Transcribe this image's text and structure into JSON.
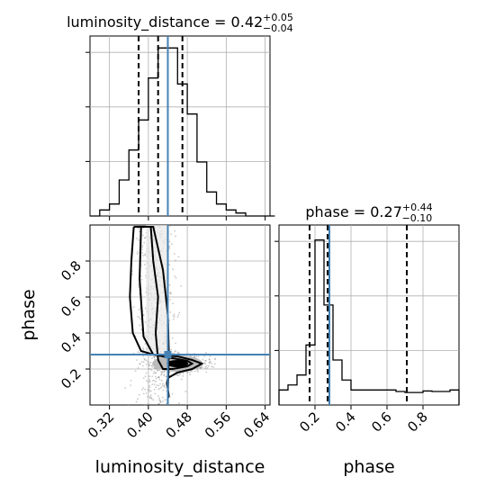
{
  "chart_data": [
    {
      "type": "histogram",
      "panel": "luminosity_distance-1d",
      "title": {
        "param": "luminosity_distance",
        "median": "0.42",
        "plus": "+0.05",
        "minus": "−0.04"
      },
      "bin_edges": [
        0.28,
        0.3,
        0.32,
        0.34,
        0.36,
        0.38,
        0.4,
        0.42,
        0.44,
        0.46,
        0.48,
        0.5,
        0.52,
        0.54,
        0.56,
        0.58,
        0.6,
        0.62,
        0.64,
        0.66
      ],
      "counts": [
        0,
        1,
        2,
        6,
        11,
        16,
        23,
        28,
        28,
        22,
        17,
        9,
        4,
        2,
        1,
        0.5,
        0,
        0,
        0
      ],
      "ylim": [
        0,
        30
      ],
      "quantiles": [
        0.38,
        0.42,
        0.47
      ],
      "truth": 0.44,
      "xlim": [
        0.28,
        0.65
      ],
      "xticks": [
        0.32,
        0.4,
        0.48,
        0.56,
        0.64
      ],
      "grid": true
    },
    {
      "type": "histogram",
      "panel": "phase-1d",
      "title": {
        "param": "phase",
        "median": "0.27",
        "plus": "+0.44",
        "minus": "−0.10"
      },
      "bin_edges": [
        0.0,
        0.05,
        0.1,
        0.15,
        0.2,
        0.25,
        0.3,
        0.35,
        0.4,
        0.45,
        0.5,
        0.55,
        0.6,
        0.65,
        0.7,
        0.75,
        0.8,
        0.85,
        0.9,
        0.95,
        1.0
      ],
      "counts": [
        0.3,
        0.4,
        0.6,
        1.2,
        3.3,
        2.0,
        0.9,
        0.5,
        0.3,
        0.3,
        0.3,
        0.3,
        0.3,
        0.27,
        0.25,
        0.25,
        0.28,
        0.27,
        0.27,
        0.3
      ],
      "ylim": [
        0,
        3.6
      ],
      "quantiles": [
        0.17,
        0.27,
        0.71
      ],
      "truth": 0.28,
      "xlim": [
        0.0,
        1.0
      ],
      "xticks": [
        0.2,
        0.4,
        0.6,
        0.8
      ],
      "xlabel": "phase",
      "grid": true
    },
    {
      "type": "scatter",
      "panel": "luminosity_distance-vs-phase-2d",
      "xlabel": "luminosity_distance",
      "ylabel": "phase",
      "xlim": [
        0.28,
        0.65
      ],
      "ylim": [
        0.0,
        1.0
      ],
      "xticks": [
        0.32,
        0.4,
        0.48,
        0.56,
        0.64
      ],
      "yticks": [
        0.2,
        0.4,
        0.6,
        0.8
      ],
      "truth": {
        "x": 0.44,
        "y": 0.28
      },
      "contours": [
        {
          "level": "outer",
          "x": [
            0.37,
            0.365,
            0.362,
            0.368,
            0.385,
            0.41,
            0.46,
            0.49,
            0.51,
            0.49,
            0.46,
            0.44,
            0.438,
            0.44,
            0.442,
            0.44,
            0.442,
            0.44,
            0.43,
            0.41,
            0.38,
            0.37
          ],
          "y": [
            0.99,
            0.8,
            0.6,
            0.4,
            0.3,
            0.28,
            0.27,
            0.25,
            0.23,
            0.2,
            0.18,
            0.15,
            0.12,
            0.09,
            0.05,
            0.04,
            0.3,
            0.5,
            0.75,
            0.99,
            0.99,
            0.99
          ]
        },
        {
          "level": "inner",
          "x": [
            0.385,
            0.382,
            0.39,
            0.41,
            0.45,
            0.48,
            0.49,
            0.48,
            0.45,
            0.43,
            0.42,
            0.415,
            0.42,
            0.41,
            0.405,
            0.4,
            0.385
          ],
          "y": [
            0.99,
            0.7,
            0.38,
            0.28,
            0.26,
            0.245,
            0.23,
            0.215,
            0.2,
            0.2,
            0.25,
            0.4,
            0.6,
            0.8,
            0.99,
            0.99,
            0.99
          ]
        }
      ],
      "density_peak": {
        "x": 0.46,
        "y": 0.23
      }
    }
  ]
}
